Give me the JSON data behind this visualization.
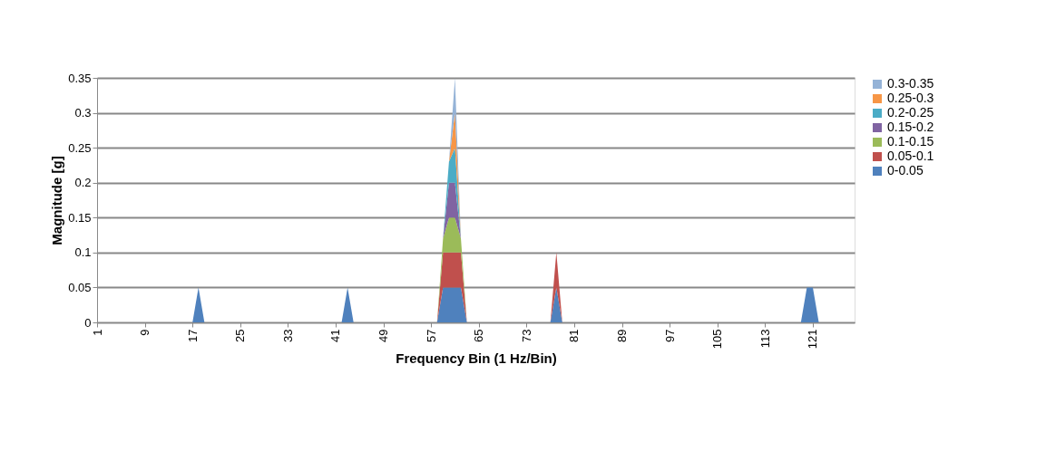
{
  "chart_data": {
    "type": "area",
    "stacked": true,
    "xlabel": "Frequency Bin (1 Hz/Bin)",
    "ylabel": "Magnitude [g]",
    "x": [
      1,
      17,
      18,
      19,
      42,
      43,
      44,
      58,
      59,
      60,
      61,
      62,
      63,
      77,
      78,
      79,
      119,
      120,
      121,
      122,
      128
    ],
    "xlim": [
      1,
      128
    ],
    "xticks": [
      1,
      9,
      17,
      25,
      33,
      41,
      49,
      57,
      65,
      73,
      81,
      89,
      97,
      105,
      113,
      121
    ],
    "ylim": [
      0,
      0.35
    ],
    "yticks": [
      0,
      0.05,
      0.1,
      0.15,
      0.2,
      0.25,
      0.3,
      0.35
    ],
    "grid": "y",
    "legend": "right",
    "series": [
      {
        "name": "0-0.05",
        "color": "#4f81bd",
        "values": [
          0,
          0,
          0.05,
          0,
          0,
          0.05,
          0,
          0,
          0.05,
          0.05,
          0.05,
          0.05,
          0,
          0,
          0.05,
          0,
          0,
          0.05,
          0.05,
          0,
          0
        ]
      },
      {
        "name": "0.05-0.1",
        "color": "#c0504d",
        "values": [
          0,
          0,
          0,
          0,
          0,
          0,
          0,
          0,
          0.05,
          0.05,
          0.05,
          0.05,
          0,
          0,
          0.05,
          0,
          0,
          0,
          0,
          0,
          0
        ]
      },
      {
        "name": "0.1-0.15",
        "color": "#9bbb59",
        "values": [
          0,
          0,
          0,
          0,
          0,
          0,
          0,
          0,
          0.02,
          0.05,
          0.05,
          0.02,
          0,
          0,
          0,
          0,
          0,
          0,
          0,
          0,
          0
        ]
      },
      {
        "name": "0.15-0.2",
        "color": "#8064a2",
        "values": [
          0,
          0,
          0,
          0,
          0,
          0,
          0,
          0,
          0,
          0.05,
          0.05,
          0,
          0,
          0,
          0,
          0,
          0,
          0,
          0,
          0,
          0
        ]
      },
      {
        "name": "0.2-0.25",
        "color": "#4bacc6",
        "values": [
          0,
          0,
          0,
          0,
          0,
          0,
          0,
          0,
          0,
          0.03,
          0.05,
          0,
          0,
          0,
          0,
          0,
          0,
          0,
          0,
          0,
          0
        ]
      },
      {
        "name": "0.25-0.3",
        "color": "#f79646",
        "values": [
          0,
          0,
          0,
          0,
          0,
          0,
          0,
          0,
          0,
          0,
          0.05,
          0,
          0,
          0,
          0,
          0,
          0,
          0,
          0,
          0,
          0
        ]
      },
      {
        "name": "0.3-0.35",
        "color": "#95b3d7",
        "values": [
          0,
          0,
          0,
          0,
          0,
          0,
          0,
          0,
          0,
          0,
          0.05,
          0,
          0,
          0,
          0,
          0,
          0,
          0,
          0,
          0,
          0
        ]
      }
    ]
  }
}
